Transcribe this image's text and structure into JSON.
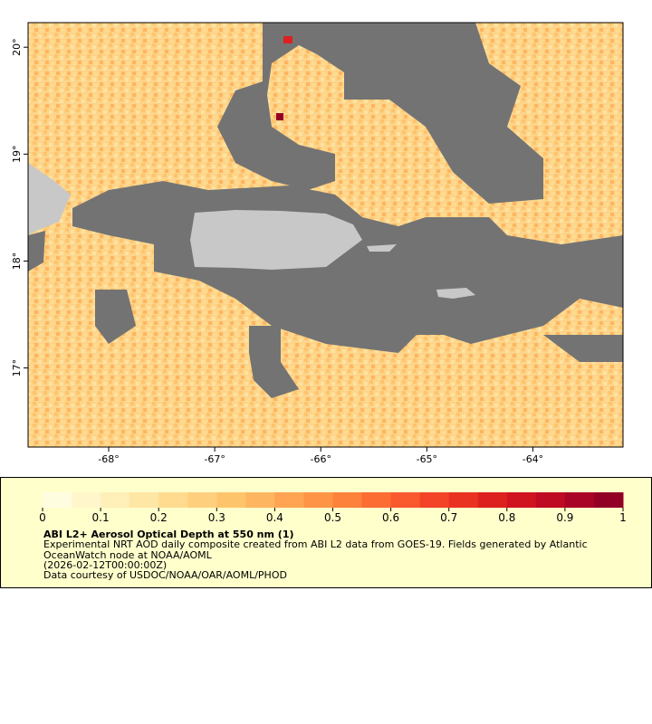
{
  "map": {
    "xlim": [
      -68.76,
      -63.15
    ],
    "ylim": [
      16.26,
      20.23
    ],
    "xticks": [
      {
        "value": -68,
        "label": "-68°"
      },
      {
        "value": -67,
        "label": "-67°"
      },
      {
        "value": -66,
        "label": "-66°"
      },
      {
        "value": -65,
        "label": "-65°"
      },
      {
        "value": -64,
        "label": "-64°"
      }
    ],
    "yticks": [
      {
        "value": 20,
        "label": "20°"
      },
      {
        "value": 19,
        "label": "19°"
      },
      {
        "value": 18,
        "label": "18°"
      },
      {
        "value": 17,
        "label": "17°"
      }
    ],
    "colorbar": {
      "lim": [
        0,
        1
      ],
      "ticks": [
        0,
        0.1,
        0.2,
        0.3,
        0.4,
        0.5,
        0.6,
        0.7,
        0.8,
        0.9,
        1
      ],
      "colors": [
        "#fffde0",
        "#fff6cc",
        "#ffefb8",
        "#fee6a4",
        "#fedb8f",
        "#fed07d",
        "#fec46c",
        "#feb55f",
        "#fea452",
        "#fd9446",
        "#fd823c",
        "#fc6d33",
        "#f9592d",
        "#f34427",
        "#e93222",
        "#dd211e",
        "#cf141f",
        "#be0a23",
        "#a90426",
        "#930026"
      ]
    },
    "legend": {
      "title": "ABI L2+ Aerosol Optical Depth at 550 nm (1)",
      "lines": [
        "Experimental NRT AOD daily composite created from ABI L2 data from GOES-19. Fields generated by Atlantic",
        "OceanWatch node at NOAA/AOML",
        "(2026-02-12T00:00:00Z)",
        "Data courtesy of USDOC/NOAA/OAR/AOML/PHOD"
      ]
    }
  }
}
